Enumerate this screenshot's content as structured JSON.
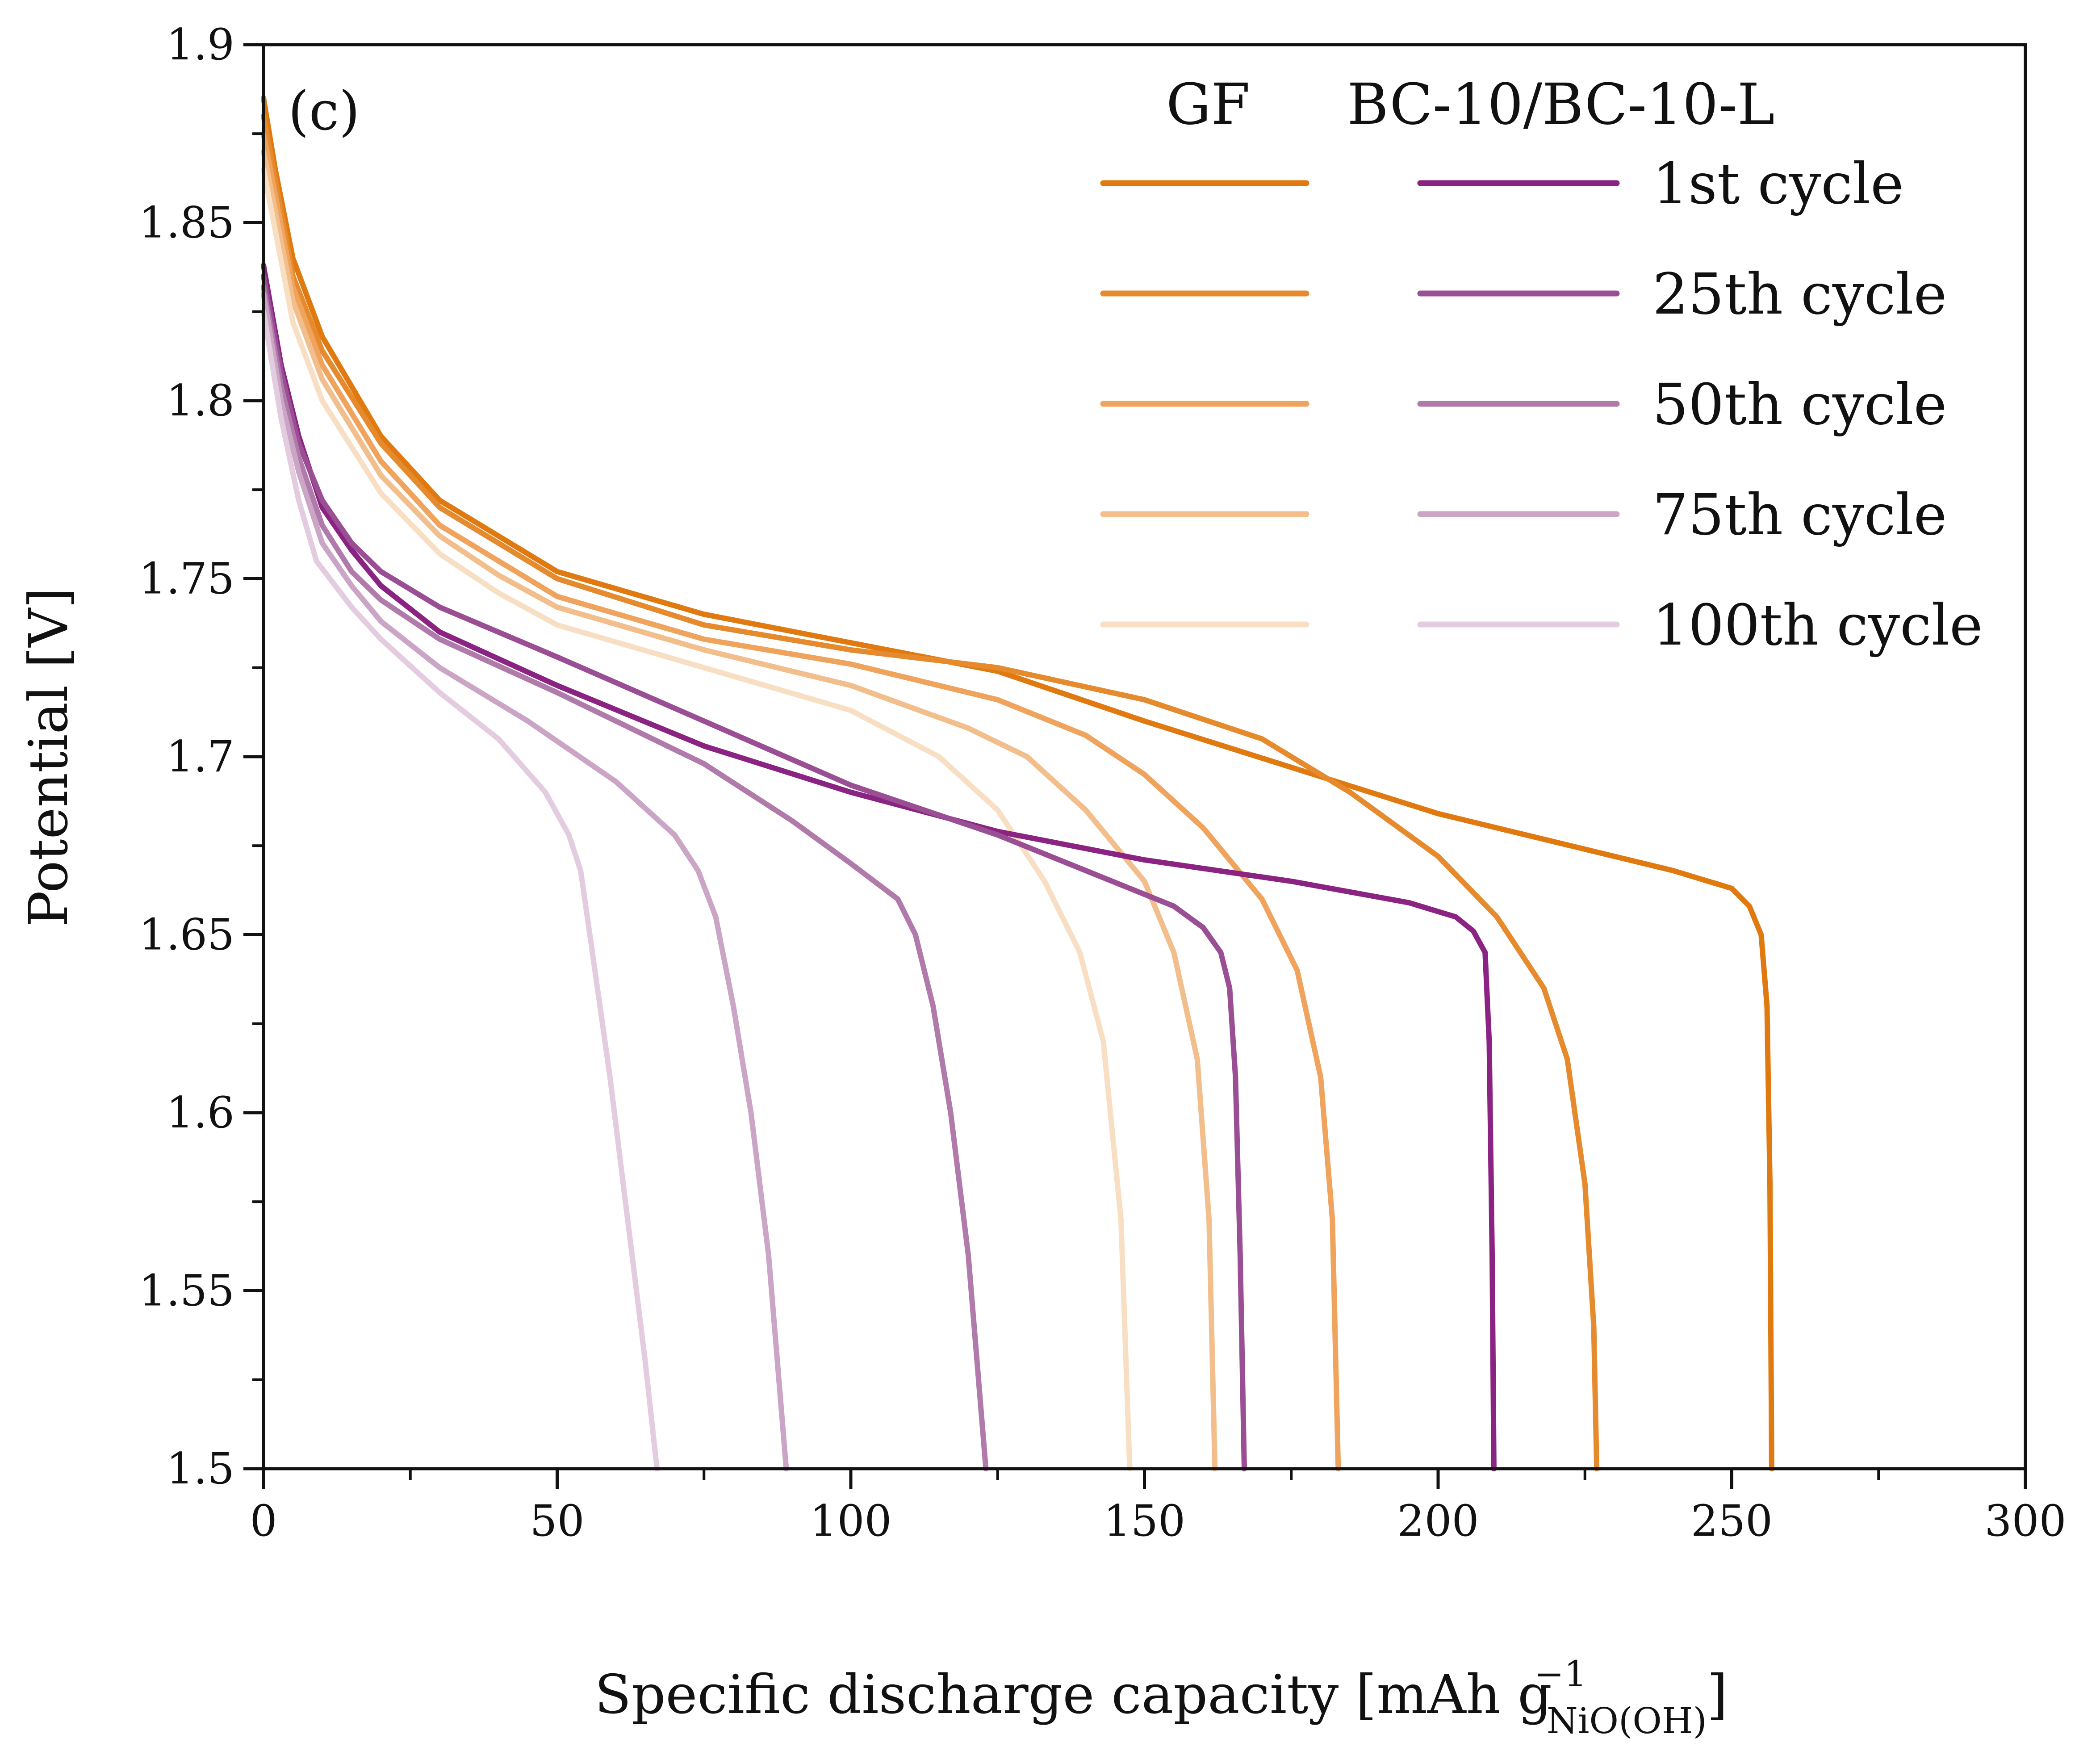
{
  "chart_data": {
    "type": "line",
    "panel_label": "(c)",
    "xlabel": "Specific discharge capacity [mAh g",
    "xlabel_sup": "−1",
    "xlabel_sub": "NiO(OH)",
    "xlabel_end": "]",
    "ylabel": "Potential [V]",
    "xlim": [
      0,
      300
    ],
    "ylim": [
      1.5,
      1.9
    ],
    "x_ticks": [
      0,
      50,
      100,
      150,
      200,
      250,
      300
    ],
    "y_ticks": [
      1.5,
      1.55,
      1.6,
      1.65,
      1.7,
      1.75,
      1.8,
      1.85,
      1.9
    ],
    "x_tick_labels": [
      "0",
      "50",
      "100",
      "150",
      "200",
      "250",
      "300"
    ],
    "y_tick_labels": [
      "1.5",
      "1.55",
      "1.6",
      "1.65",
      "1.7",
      "1.75",
      "1.8",
      "1.85",
      "1.9"
    ],
    "grid": false,
    "legend": {
      "placement": "top-right",
      "group_headers": [
        "GF",
        "BC-10/BC-10-L"
      ],
      "row_labels": [
        "1st cycle",
        "25th cycle",
        "50th cycle",
        "75th cycle",
        "100th cycle"
      ]
    },
    "series": [
      {
        "group": "GF",
        "cycle": "1st cycle",
        "color": "#E07A10",
        "opacity": 1.0,
        "points": [
          [
            0,
            1.885
          ],
          [
            2,
            1.865
          ],
          [
            5,
            1.84
          ],
          [
            10,
            1.818
          ],
          [
            20,
            1.79
          ],
          [
            30,
            1.772
          ],
          [
            40,
            1.762
          ],
          [
            50,
            1.752
          ],
          [
            75,
            1.74
          ],
          [
            100,
            1.732
          ],
          [
            125,
            1.724
          ],
          [
            150,
            1.71
          ],
          [
            175,
            1.697
          ],
          [
            200,
            1.684
          ],
          [
            225,
            1.674
          ],
          [
            240,
            1.668
          ],
          [
            250,
            1.663
          ],
          [
            253,
            1.658
          ],
          [
            255,
            1.65
          ],
          [
            256,
            1.63
          ],
          [
            256.5,
            1.58
          ],
          [
            256.8,
            1.5
          ]
        ]
      },
      {
        "group": "GF",
        "cycle": "25th cycle",
        "color": "#E68A2E",
        "opacity": 1.0,
        "points": [
          [
            0,
            1.88
          ],
          [
            5,
            1.835
          ],
          [
            10,
            1.814
          ],
          [
            20,
            1.788
          ],
          [
            30,
            1.77
          ],
          [
            40,
            1.76
          ],
          [
            50,
            1.75
          ],
          [
            75,
            1.737
          ],
          [
            100,
            1.73
          ],
          [
            125,
            1.725
          ],
          [
            150,
            1.716
          ],
          [
            170,
            1.705
          ],
          [
            185,
            1.69
          ],
          [
            200,
            1.672
          ],
          [
            210,
            1.655
          ],
          [
            218,
            1.635
          ],
          [
            222,
            1.615
          ],
          [
            225,
            1.58
          ],
          [
            226.5,
            1.54
          ],
          [
            227,
            1.5
          ]
        ]
      },
      {
        "group": "GF",
        "cycle": "50th cycle",
        "color": "#EFA35C",
        "opacity": 1.0,
        "points": [
          [
            0,
            1.875
          ],
          [
            5,
            1.832
          ],
          [
            10,
            1.81
          ],
          [
            20,
            1.783
          ],
          [
            30,
            1.765
          ],
          [
            40,
            1.755
          ],
          [
            50,
            1.745
          ],
          [
            75,
            1.733
          ],
          [
            100,
            1.726
          ],
          [
            125,
            1.716
          ],
          [
            140,
            1.706
          ],
          [
            150,
            1.695
          ],
          [
            160,
            1.68
          ],
          [
            170,
            1.66
          ],
          [
            176,
            1.64
          ],
          [
            180,
            1.61
          ],
          [
            182,
            1.57
          ],
          [
            183,
            1.5
          ]
        ]
      },
      {
        "group": "GF",
        "cycle": "75th cycle",
        "color": "#F2BE8C",
        "opacity": 1.0,
        "points": [
          [
            0,
            1.87
          ],
          [
            5,
            1.828
          ],
          [
            10,
            1.806
          ],
          [
            20,
            1.779
          ],
          [
            30,
            1.762
          ],
          [
            40,
            1.751
          ],
          [
            50,
            1.742
          ],
          [
            75,
            1.73
          ],
          [
            100,
            1.72
          ],
          [
            120,
            1.708
          ],
          [
            130,
            1.7
          ],
          [
            140,
            1.685
          ],
          [
            150,
            1.665
          ],
          [
            155,
            1.645
          ],
          [
            159,
            1.615
          ],
          [
            161,
            1.57
          ],
          [
            162,
            1.5
          ]
        ]
      },
      {
        "group": "GF",
        "cycle": "100th cycle",
        "color": "#F8DFC4",
        "opacity": 1.0,
        "points": [
          [
            0,
            1.865
          ],
          [
            5,
            1.822
          ],
          [
            10,
            1.8
          ],
          [
            20,
            1.774
          ],
          [
            30,
            1.757
          ],
          [
            40,
            1.746
          ],
          [
            50,
            1.737
          ],
          [
            75,
            1.725
          ],
          [
            100,
            1.713
          ],
          [
            115,
            1.7
          ],
          [
            125,
            1.685
          ],
          [
            133,
            1.665
          ],
          [
            139,
            1.645
          ],
          [
            143,
            1.62
          ],
          [
            146,
            1.57
          ],
          [
            147.5,
            1.5
          ]
        ]
      },
      {
        "group": "BC-10/BC-10-L",
        "cycle": "1st cycle",
        "color": "#8A2382",
        "opacity": 1.0,
        "points": [
          [
            0,
            1.838
          ],
          [
            3,
            1.81
          ],
          [
            6,
            1.79
          ],
          [
            10,
            1.77
          ],
          [
            15,
            1.758
          ],
          [
            20,
            1.748
          ],
          [
            30,
            1.735
          ],
          [
            50,
            1.72
          ],
          [
            75,
            1.703
          ],
          [
            100,
            1.69
          ],
          [
            125,
            1.679
          ],
          [
            150,
            1.671
          ],
          [
            175,
            1.665
          ],
          [
            195,
            1.659
          ],
          [
            203,
            1.655
          ],
          [
            206,
            1.651
          ],
          [
            208,
            1.645
          ],
          [
            208.7,
            1.62
          ],
          [
            209.2,
            1.56
          ],
          [
            209.5,
            1.5
          ]
        ]
      },
      {
        "group": "BC-10/BC-10-L",
        "cycle": "25th cycle",
        "color": "#9A4E94",
        "opacity": 1.0,
        "points": [
          [
            0,
            1.835
          ],
          [
            3,
            1.808
          ],
          [
            6,
            1.788
          ],
          [
            10,
            1.772
          ],
          [
            15,
            1.76
          ],
          [
            20,
            1.752
          ],
          [
            30,
            1.742
          ],
          [
            50,
            1.728
          ],
          [
            75,
            1.71
          ],
          [
            100,
            1.692
          ],
          [
            125,
            1.678
          ],
          [
            140,
            1.668
          ],
          [
            155,
            1.658
          ],
          [
            160,
            1.652
          ],
          [
            163,
            1.645
          ],
          [
            164.5,
            1.635
          ],
          [
            165.5,
            1.61
          ],
          [
            166.3,
            1.56
          ],
          [
            167,
            1.5
          ]
        ]
      },
      {
        "group": "BC-10/BC-10-L",
        "cycle": "50th cycle",
        "color": "#B07AAA",
        "opacity": 1.0,
        "points": [
          [
            0,
            1.832
          ],
          [
            3,
            1.804
          ],
          [
            6,
            1.784
          ],
          [
            10,
            1.765
          ],
          [
            15,
            1.752
          ],
          [
            20,
            1.744
          ],
          [
            30,
            1.733
          ],
          [
            50,
            1.718
          ],
          [
            75,
            1.698
          ],
          [
            90,
            1.682
          ],
          [
            100,
            1.67
          ],
          [
            108,
            1.66
          ],
          [
            111,
            1.65
          ],
          [
            114,
            1.63
          ],
          [
            117,
            1.6
          ],
          [
            120,
            1.56
          ],
          [
            123,
            1.5
          ]
        ]
      },
      {
        "group": "BC-10/BC-10-L",
        "cycle": "75th cycle",
        "color": "#CAA5C5",
        "opacity": 1.0,
        "points": [
          [
            0,
            1.83
          ],
          [
            3,
            1.8
          ],
          [
            6,
            1.78
          ],
          [
            10,
            1.76
          ],
          [
            15,
            1.748
          ],
          [
            20,
            1.738
          ],
          [
            30,
            1.725
          ],
          [
            45,
            1.71
          ],
          [
            60,
            1.693
          ],
          [
            70,
            1.678
          ],
          [
            74,
            1.668
          ],
          [
            77,
            1.655
          ],
          [
            80,
            1.63
          ],
          [
            83,
            1.6
          ],
          [
            86,
            1.56
          ],
          [
            89,
            1.5
          ]
        ]
      },
      {
        "group": "BC-10/BC-10-L",
        "cycle": "100th cycle",
        "color": "#E3CCE0",
        "opacity": 1.0,
        "points": [
          [
            0,
            1.825
          ],
          [
            3,
            1.795
          ],
          [
            6,
            1.772
          ],
          [
            9,
            1.755
          ],
          [
            15,
            1.742
          ],
          [
            20,
            1.733
          ],
          [
            30,
            1.718
          ],
          [
            40,
            1.705
          ],
          [
            48,
            1.69
          ],
          [
            52,
            1.678
          ],
          [
            54,
            1.668
          ],
          [
            56,
            1.645
          ],
          [
            59,
            1.61
          ],
          [
            62,
            1.57
          ],
          [
            65,
            1.53
          ],
          [
            67,
            1.5
          ]
        ]
      }
    ]
  }
}
